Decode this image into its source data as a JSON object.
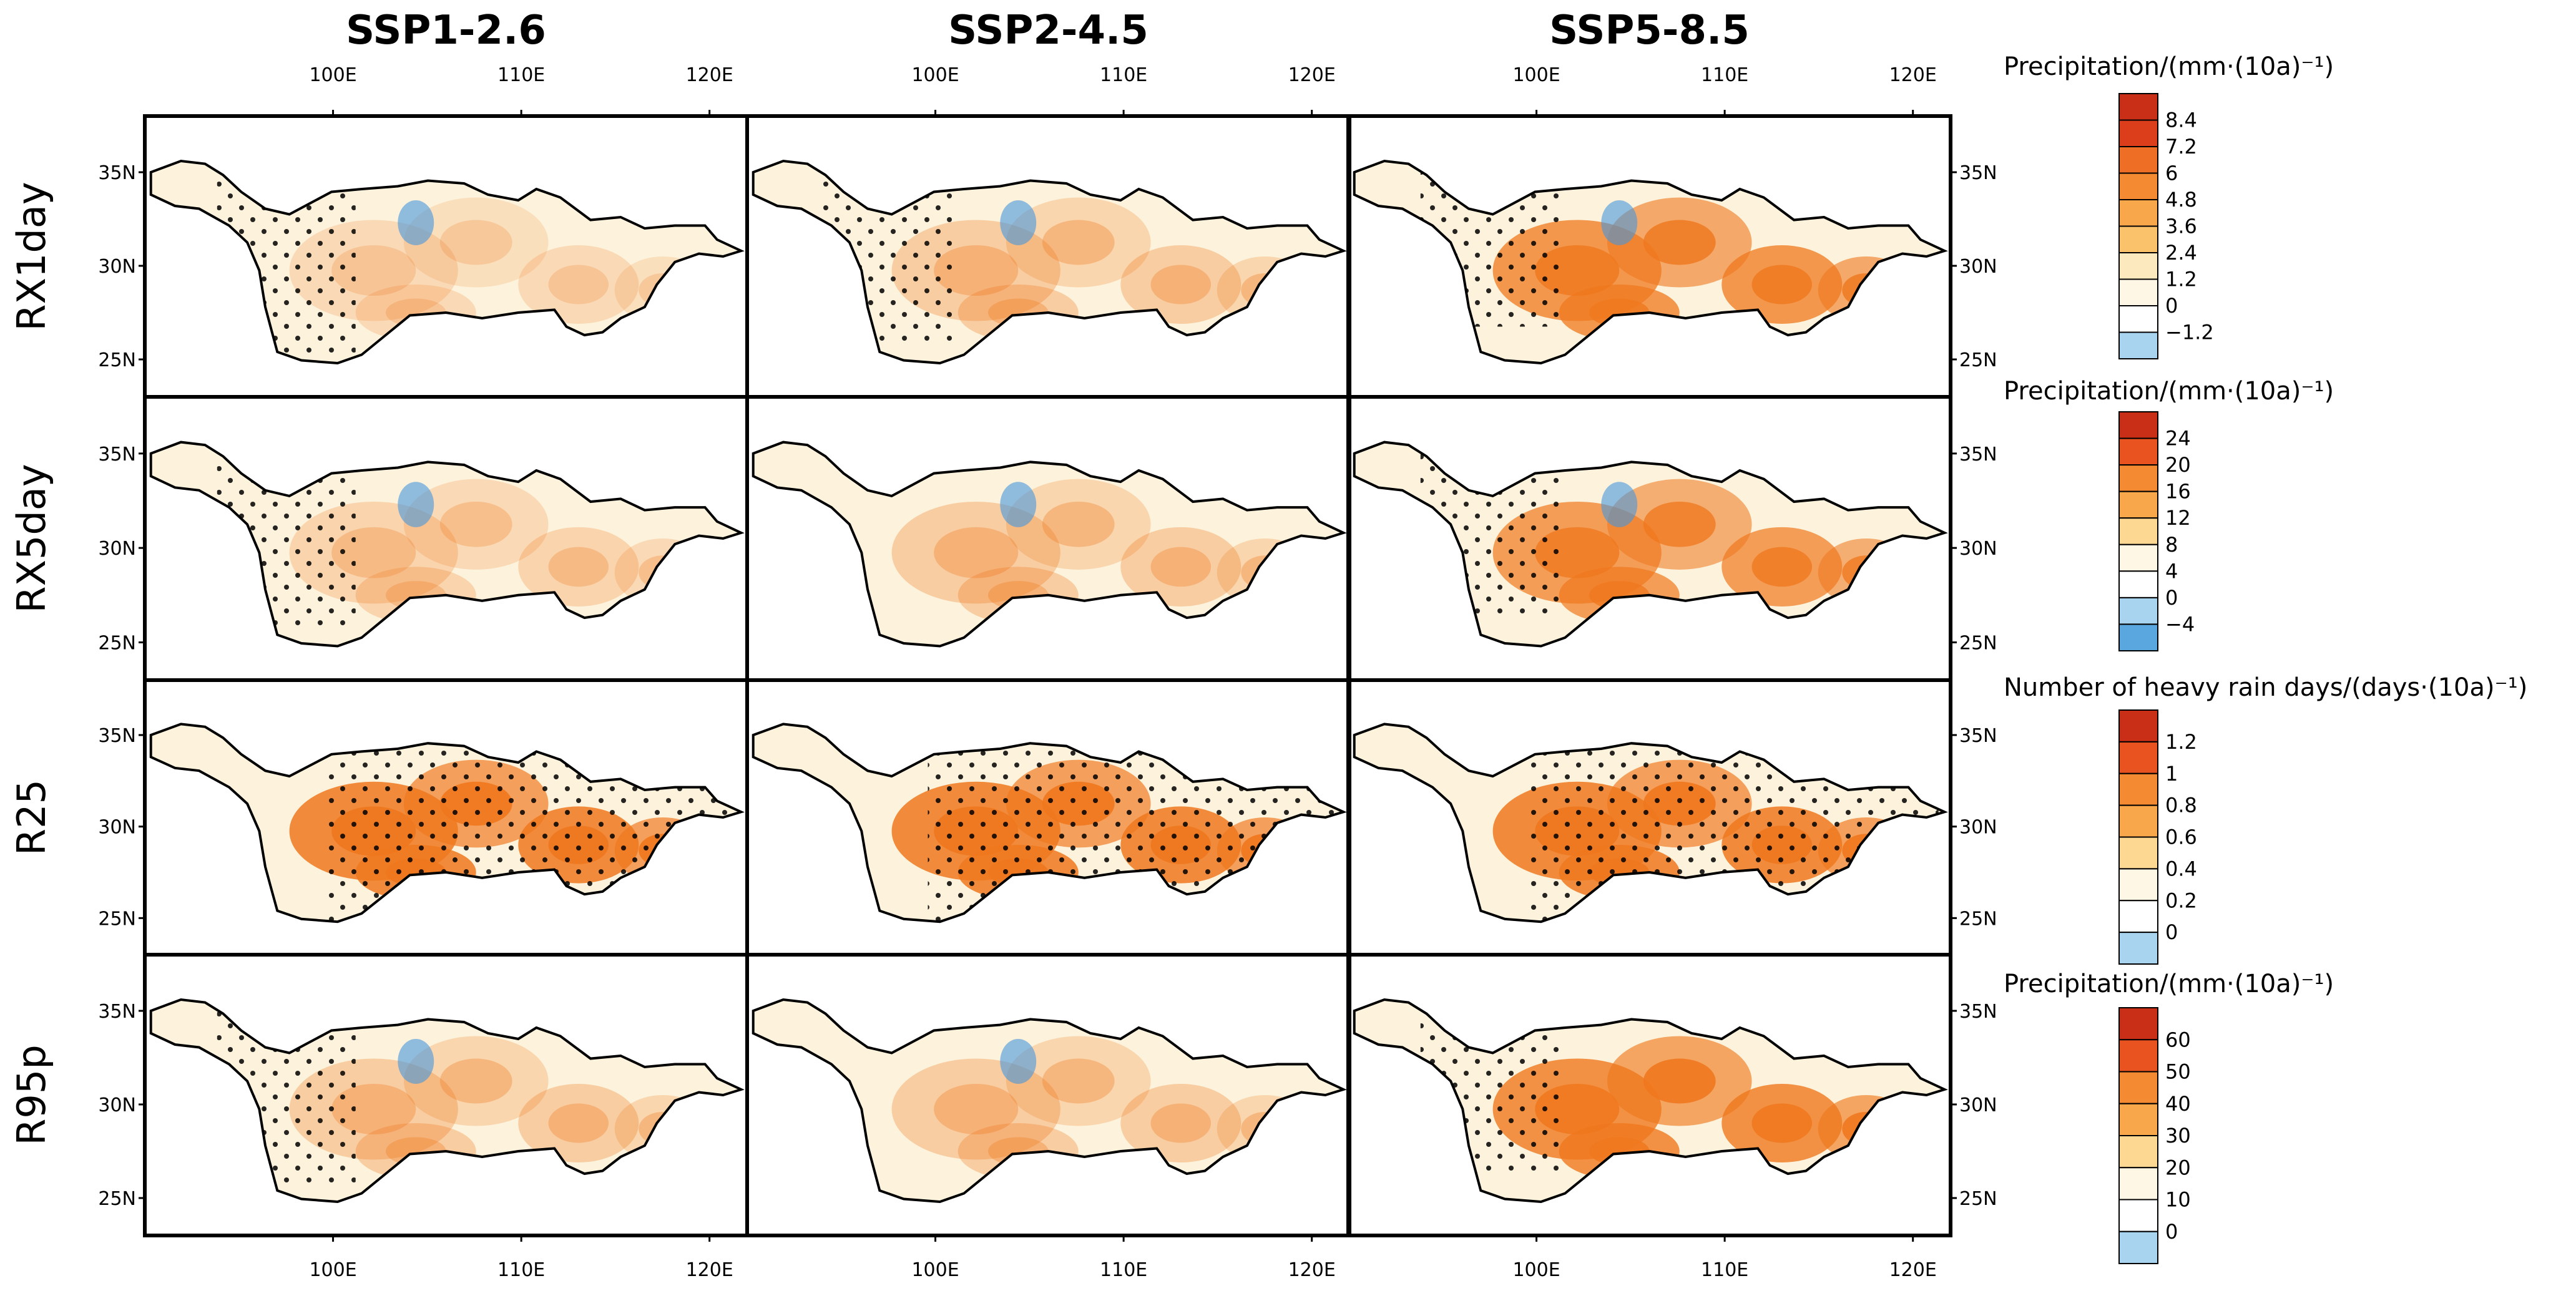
{
  "chart_data": {
    "type": "map-panel-grid",
    "columns": [
      "SSP1-2.6",
      "SSP2-4.5",
      "SSP5-8.5"
    ],
    "rows": [
      {
        "label": "RX1day",
        "colorbar_title": "Precipitation/(mm·(10a)⁻¹)",
        "levels": [
          "8.4",
          "7.2",
          "6",
          "4.8",
          "3.6",
          "2.4",
          "1.2",
          "0",
          "−1.2"
        ],
        "blue_levels": 1,
        "max_intensity": [
          0.2,
          0.3,
          0.75
        ],
        "hatched": [
          [
            0.12,
            0.35,
            0.25
          ],
          [
            0.12,
            0.35,
            0.2
          ],
          [
            0.12,
            0.35,
            0.15
          ]
        ]
      },
      {
        "label": "RX5day",
        "colorbar_title": "Precipitation/(mm·(10a)⁻¹)",
        "levels": [
          "24",
          "20",
          "16",
          "12",
          "8",
          "4",
          "0",
          "−4"
        ],
        "blue_levels": 2,
        "max_intensity": [
          0.25,
          0.3,
          0.7
        ],
        "hatched": [
          [
            0.12,
            0.35,
            0.22
          ],
          [
            0,
            0,
            0
          ],
          [
            0.12,
            0.35,
            0.18
          ]
        ]
      },
      {
        "label": "R25",
        "colorbar_title": "Number of heavy rain days/(days·(10a)⁻¹)",
        "levels": [
          "1.2",
          "1",
          "0.8",
          "0.6",
          "0.4",
          "0.2",
          "0"
        ],
        "blue_levels": 1,
        "max_intensity": [
          0.85,
          0.85,
          0.85
        ],
        "hatched": [
          [
            0.3,
            0.98,
            0.7
          ],
          [
            0.3,
            0.98,
            0.7
          ],
          [
            0.3,
            0.98,
            0.7
          ]
        ]
      },
      {
        "label": "R95p",
        "colorbar_title": "Precipitation/(mm·(10a)⁻¹)",
        "levels": [
          "60",
          "50",
          "40",
          "30",
          "20",
          "10",
          "0"
        ],
        "blue_levels": 1,
        "max_intensity": [
          0.3,
          0.3,
          0.8
        ],
        "hatched": [
          [
            0.12,
            0.35,
            0.22
          ],
          [
            0,
            0,
            0
          ],
          [
            0.12,
            0.35,
            0.18
          ]
        ]
      }
    ],
    "x_ticks": [
      "100E",
      "110E",
      "120E"
    ],
    "y_ticks": [
      "35N",
      "30N",
      "25N"
    ],
    "lon_range": [
      90,
      122
    ],
    "lat_range": [
      23,
      38
    ]
  }
}
